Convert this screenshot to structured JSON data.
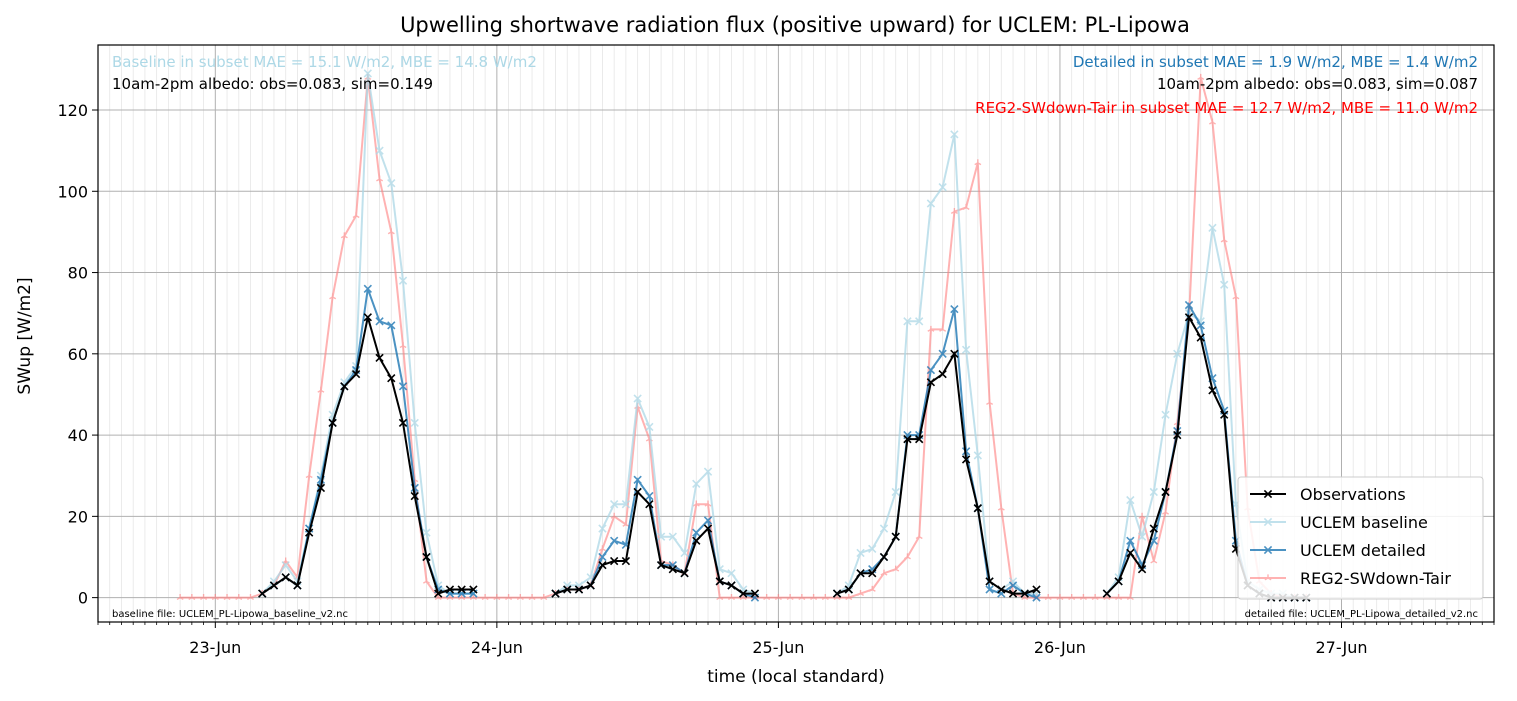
{
  "chart_data": {
    "type": "line",
    "title": "Upwelling shortwave radiation flux (positive upward) for UCLEM: PL-Lipowa",
    "xlabel": "time (local standard)",
    "ylabel": "SWup [W/m2]",
    "x_unit": "hours since 23-Jun 00:00 local standard",
    "xlim": [
      -10,
      109
    ],
    "ylim": [
      -6,
      136
    ],
    "x_ticks": [
      {
        "x": 0,
        "label": "23-Jun"
      },
      {
        "x": 24,
        "label": "24-Jun"
      },
      {
        "x": 48,
        "label": "25-Jun"
      },
      {
        "x": 72,
        "label": "26-Jun"
      },
      {
        "x": 96,
        "label": "27-Jun"
      }
    ],
    "y_ticks": [
      0,
      20,
      40,
      60,
      80,
      100,
      120
    ],
    "grid": true,
    "legend_position": "lower right",
    "annotations": {
      "left_mae": "Baseline in subset MAE = 15.1 W/m2, MBE = 14.8 W/m2",
      "left_albedo": "10am-2pm albedo: obs=0.083, sim=0.149",
      "right_mae": "Detailed in subset MAE = 1.9 W/m2, MBE = 1.4 W/m2",
      "right_albedo": "10am-2pm albedo: obs=0.083, sim=0.087",
      "right_reg2": "REG2-SWdown-Tair in subset MAE = 12.7 W/m2, MBE = 11.0 W/m2",
      "baseline_file": "baseline file: UCLEM_PL-Lipowa_baseline_v2.nc",
      "detailed_file": "detailed file: UCLEM_PL-Lipowa_detailed_v2.nc"
    },
    "series": [
      {
        "name": "REG2-SWdown-Tair",
        "color": "#ff8080",
        "opacity": 0.6,
        "marker": "tri",
        "points": [
          [
            -3,
            0
          ],
          [
            -2,
            0
          ],
          [
            -1,
            0
          ],
          [
            0,
            0
          ],
          [
            1,
            0
          ],
          [
            2,
            0
          ],
          [
            3,
            0
          ],
          [
            4,
            1
          ],
          [
            5,
            3
          ],
          [
            6,
            9
          ],
          [
            7,
            5
          ],
          [
            8,
            30
          ],
          [
            9,
            51
          ],
          [
            10,
            74
          ],
          [
            11,
            89
          ],
          [
            12,
            94
          ],
          [
            13,
            128
          ],
          [
            14,
            103
          ],
          [
            15,
            90
          ],
          [
            16,
            62
          ],
          [
            17,
            29
          ],
          [
            18,
            4
          ],
          [
            19,
            0
          ],
          [
            20,
            0
          ],
          [
            21,
            0
          ],
          [
            22,
            0
          ],
          [
            23,
            0
          ],
          [
            24,
            0
          ],
          [
            25,
            0
          ],
          [
            26,
            0
          ],
          [
            27,
            0
          ],
          [
            28,
            0
          ],
          [
            29,
            1
          ],
          [
            30,
            2
          ],
          [
            31,
            2
          ],
          [
            32,
            3
          ],
          [
            33,
            12
          ],
          [
            34,
            20
          ],
          [
            35,
            18
          ],
          [
            36,
            47
          ],
          [
            37,
            39
          ],
          [
            38,
            9
          ],
          [
            39,
            8
          ],
          [
            40,
            6
          ],
          [
            41,
            23
          ],
          [
            42,
            23
          ],
          [
            43,
            0
          ],
          [
            44,
            0
          ],
          [
            45,
            0
          ],
          [
            46,
            0
          ],
          [
            47,
            0
          ],
          [
            48,
            0
          ],
          [
            49,
            0
          ],
          [
            50,
            0
          ],
          [
            51,
            0
          ],
          [
            52,
            0
          ],
          [
            53,
            0
          ],
          [
            54,
            0
          ],
          [
            55,
            1
          ],
          [
            56,
            2
          ],
          [
            57,
            6
          ],
          [
            58,
            7
          ],
          [
            59,
            10
          ],
          [
            60,
            15
          ],
          [
            61,
            66
          ],
          [
            62,
            66
          ],
          [
            63,
            95
          ],
          [
            64,
            96
          ],
          [
            65,
            107
          ],
          [
            66,
            48
          ],
          [
            67,
            22
          ],
          [
            68,
            1
          ],
          [
            69,
            0
          ],
          [
            70,
            0
          ],
          [
            71,
            0
          ],
          [
            72,
            0
          ],
          [
            73,
            0
          ],
          [
            74,
            0
          ],
          [
            75,
            0
          ],
          [
            76,
            0
          ],
          [
            77,
            0
          ],
          [
            78,
            0
          ],
          [
            79,
            20
          ],
          [
            80,
            9
          ],
          [
            81,
            21
          ],
          [
            82,
            43
          ],
          [
            83,
            69
          ],
          [
            84,
            128
          ],
          [
            85,
            117
          ],
          [
            86,
            88
          ],
          [
            87,
            74
          ],
          [
            88,
            22
          ],
          [
            89,
            4
          ],
          [
            90,
            1
          ],
          [
            91,
            0
          ],
          [
            92,
            0
          ],
          [
            93,
            0
          ]
        ]
      },
      {
        "name": "UCLEM baseline",
        "color": "#add8e6",
        "opacity": 0.75,
        "marker": "x",
        "points": [
          [
            4,
            1
          ],
          [
            5,
            4
          ],
          [
            6,
            8
          ],
          [
            7,
            4
          ],
          [
            8,
            17
          ],
          [
            9,
            30
          ],
          [
            10,
            45
          ],
          [
            11,
            53
          ],
          [
            12,
            57
          ],
          [
            13,
            129
          ],
          [
            14,
            110
          ],
          [
            15,
            102
          ],
          [
            16,
            78
          ],
          [
            17,
            43
          ],
          [
            18,
            16
          ],
          [
            19,
            3
          ],
          [
            20,
            1
          ],
          [
            21,
            1
          ],
          [
            22,
            1
          ],
          [
            29,
            1
          ],
          [
            30,
            3
          ],
          [
            31,
            3
          ],
          [
            32,
            5
          ],
          [
            33,
            17
          ],
          [
            34,
            23
          ],
          [
            35,
            23
          ],
          [
            36,
            49
          ],
          [
            37,
            42
          ],
          [
            38,
            15
          ],
          [
            39,
            15
          ],
          [
            40,
            11
          ],
          [
            41,
            28
          ],
          [
            42,
            31
          ],
          [
            43,
            7
          ],
          [
            44,
            6
          ],
          [
            45,
            2
          ],
          [
            46,
            1
          ],
          [
            53,
            1
          ],
          [
            54,
            3
          ],
          [
            55,
            11
          ],
          [
            56,
            12
          ],
          [
            57,
            17
          ],
          [
            58,
            26
          ],
          [
            59,
            68
          ],
          [
            60,
            68
          ],
          [
            61,
            97
          ],
          [
            62,
            101
          ],
          [
            63,
            114
          ],
          [
            64,
            61
          ],
          [
            65,
            35
          ],
          [
            66,
            4
          ],
          [
            67,
            2
          ],
          [
            68,
            4
          ],
          [
            69,
            1
          ],
          [
            70,
            1
          ],
          [
            76,
            1
          ],
          [
            77,
            5
          ],
          [
            78,
            24
          ],
          [
            79,
            15
          ],
          [
            80,
            26
          ],
          [
            81,
            45
          ],
          [
            82,
            60
          ],
          [
            83,
            70
          ],
          [
            84,
            68
          ],
          [
            85,
            91
          ],
          [
            86,
            77
          ],
          [
            87,
            23
          ],
          [
            88,
            4
          ],
          [
            89,
            2
          ],
          [
            90,
            1
          ],
          [
            91,
            1
          ],
          [
            92,
            0
          ],
          [
            93,
            0
          ]
        ]
      },
      {
        "name": "UCLEM detailed",
        "color": "#1f77b4",
        "opacity": 0.8,
        "marker": "x",
        "points": [
          [
            4,
            1
          ],
          [
            5,
            3
          ],
          [
            6,
            5
          ],
          [
            7,
            3
          ],
          [
            8,
            17
          ],
          [
            9,
            29
          ],
          [
            10,
            43
          ],
          [
            11,
            52
          ],
          [
            12,
            56
          ],
          [
            13,
            76
          ],
          [
            14,
            68
          ],
          [
            15,
            67
          ],
          [
            16,
            52
          ],
          [
            17,
            27
          ],
          [
            18,
            10
          ],
          [
            19,
            2
          ],
          [
            20,
            1
          ],
          [
            21,
            1
          ],
          [
            22,
            1
          ],
          [
            29,
            1
          ],
          [
            30,
            2
          ],
          [
            31,
            2
          ],
          [
            32,
            3
          ],
          [
            33,
            10
          ],
          [
            34,
            14
          ],
          [
            35,
            13
          ],
          [
            36,
            29
          ],
          [
            37,
            25
          ],
          [
            38,
            8
          ],
          [
            39,
            8
          ],
          [
            40,
            6
          ],
          [
            41,
            16
          ],
          [
            42,
            19
          ],
          [
            43,
            4
          ],
          [
            44,
            3
          ],
          [
            45,
            1
          ],
          [
            46,
            0
          ],
          [
            53,
            1
          ],
          [
            54,
            2
          ],
          [
            55,
            6
          ],
          [
            56,
            7
          ],
          [
            57,
            10
          ],
          [
            58,
            15
          ],
          [
            59,
            40
          ],
          [
            60,
            40
          ],
          [
            61,
            56
          ],
          [
            62,
            60
          ],
          [
            63,
            71
          ],
          [
            64,
            36
          ],
          [
            65,
            22
          ],
          [
            66,
            2
          ],
          [
            67,
            1
          ],
          [
            68,
            3
          ],
          [
            69,
            1
          ],
          [
            70,
            0
          ],
          [
            76,
            1
          ],
          [
            77,
            4
          ],
          [
            78,
            14
          ],
          [
            79,
            8
          ],
          [
            80,
            14
          ],
          [
            81,
            26
          ],
          [
            82,
            41
          ],
          [
            83,
            72
          ],
          [
            84,
            67
          ],
          [
            85,
            54
          ],
          [
            86,
            46
          ],
          [
            87,
            14
          ],
          [
            88,
            3
          ],
          [
            89,
            1
          ],
          [
            90,
            0
          ],
          [
            91,
            0
          ],
          [
            92,
            0
          ],
          [
            93,
            0
          ]
        ]
      },
      {
        "name": "Observations",
        "color": "#000000",
        "opacity": 1,
        "marker": "x",
        "points": [
          [
            4,
            1
          ],
          [
            5,
            3
          ],
          [
            6,
            5
          ],
          [
            7,
            3
          ],
          [
            8,
            16
          ],
          [
            9,
            27
          ],
          [
            10,
            43
          ],
          [
            11,
            52
          ],
          [
            12,
            55
          ],
          [
            13,
            69
          ],
          [
            14,
            59
          ],
          [
            15,
            54
          ],
          [
            16,
            43
          ],
          [
            17,
            25
          ],
          [
            18,
            10
          ],
          [
            19,
            1
          ],
          [
            20,
            2
          ],
          [
            21,
            2
          ],
          [
            22,
            2
          ],
          [
            29,
            1
          ],
          [
            30,
            2
          ],
          [
            31,
            2
          ],
          [
            32,
            3
          ],
          [
            33,
            8
          ],
          [
            34,
            9
          ],
          [
            35,
            9
          ],
          [
            36,
            26
          ],
          [
            37,
            23
          ],
          [
            38,
            8
          ],
          [
            39,
            7
          ],
          [
            40,
            6
          ],
          [
            41,
            14
          ],
          [
            42,
            17
          ],
          [
            43,
            4
          ],
          [
            44,
            3
          ],
          [
            45,
            1
          ],
          [
            46,
            1
          ],
          [
            53,
            1
          ],
          [
            54,
            2
          ],
          [
            55,
            6
          ],
          [
            56,
            6
          ],
          [
            57,
            10
          ],
          [
            58,
            15
          ],
          [
            59,
            39
          ],
          [
            60,
            39
          ],
          [
            61,
            53
          ],
          [
            62,
            55
          ],
          [
            63,
            60
          ],
          [
            64,
            34
          ],
          [
            65,
            22
          ],
          [
            66,
            4
          ],
          [
            67,
            2
          ],
          [
            68,
            1
          ],
          [
            69,
            1
          ],
          [
            70,
            2
          ],
          [
            76,
            1
          ],
          [
            77,
            4
          ],
          [
            78,
            11
          ],
          [
            79,
            7
          ],
          [
            80,
            17
          ],
          [
            81,
            26
          ],
          [
            82,
            40
          ],
          [
            83,
            69
          ],
          [
            84,
            64
          ],
          [
            85,
            51
          ],
          [
            86,
            45
          ],
          [
            87,
            12
          ],
          [
            88,
            3
          ],
          [
            89,
            1
          ],
          [
            90,
            0
          ],
          [
            91,
            0
          ],
          [
            92,
            0
          ],
          [
            93,
            0
          ]
        ]
      }
    ],
    "legend": [
      "Observations",
      "UCLEM baseline",
      "UCLEM detailed",
      "REG2-SWdown-Tair"
    ]
  },
  "colors": {
    "obs": "#000000",
    "baseline": "#add8e6",
    "detailed": "#1f77b4",
    "reg2": "#ff0000",
    "grid": "#b0b0b0",
    "minor_grid": "#e6e6e6"
  }
}
